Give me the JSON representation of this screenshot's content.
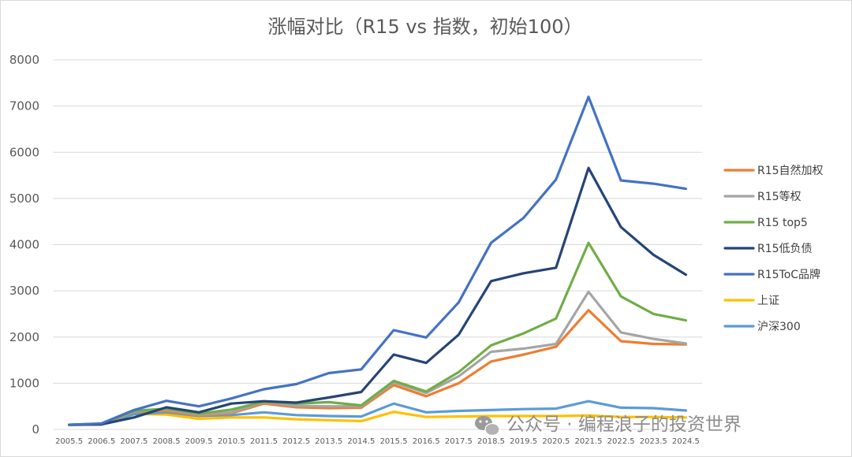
{
  "chart_data": {
    "type": "line",
    "title": "涨幅对比（R15 vs 指数，初始100）",
    "xlabel": "",
    "ylabel": "",
    "ylim": [
      0,
      8000
    ],
    "yticks": [
      "0",
      "1000",
      "2000",
      "3000",
      "4000",
      "5000",
      "6000",
      "7000",
      "8000"
    ],
    "grid": true,
    "legend_position": "right",
    "categories": [
      "2005.5",
      "2006.5",
      "2007.5",
      "2008.5",
      "2009.5",
      "2010.5",
      "2011.5",
      "2012.5",
      "2013.5",
      "2014.5",
      "2015.5",
      "2016.5",
      "2017.5",
      "2018.5",
      "2019.5",
      "2020.5",
      "2021.5",
      "2022.5",
      "2023.5",
      "2024.5"
    ],
    "series": [
      {
        "name": "R15自然加权",
        "color": "#ED7D31",
        "values": [
          100,
          110,
          380,
          400,
          300,
          350,
          560,
          480,
          460,
          470,
          960,
          720,
          1000,
          1470,
          1620,
          1790,
          2580,
          1910,
          1850,
          1840
        ]
      },
      {
        "name": "R15等权",
        "color": "#A5A5A5",
        "values": [
          100,
          115,
          390,
          430,
          320,
          370,
          590,
          510,
          500,
          500,
          1020,
          790,
          1150,
          1680,
          1750,
          1850,
          2980,
          2100,
          1960,
          1860
        ]
      },
      {
        "name": "R15 top5",
        "color": "#70AD47",
        "values": [
          100,
          120,
          400,
          450,
          340,
          430,
          600,
          560,
          590,
          520,
          1050,
          820,
          1240,
          1820,
          2080,
          2400,
          4040,
          2880,
          2500,
          2360
        ]
      },
      {
        "name": "R15低负债",
        "color": "#264478",
        "values": [
          100,
          110,
          260,
          480,
          370,
          560,
          610,
          580,
          690,
          810,
          1620,
          1440,
          2050,
          3210,
          3380,
          3500,
          5660,
          4380,
          3780,
          3350
        ]
      },
      {
        "name": "R15ToC品牌",
        "color": "#4472C4",
        "values": [
          100,
          130,
          420,
          620,
          500,
          670,
          870,
          980,
          1220,
          1300,
          2150,
          1990,
          2750,
          4040,
          4580,
          5410,
          7200,
          5390,
          5320,
          5210
        ]
      },
      {
        "name": "上证",
        "color": "#FFC000",
        "values": [
          100,
          110,
          340,
          320,
          230,
          260,
          260,
          220,
          200,
          180,
          380,
          270,
          280,
          290,
          290,
          290,
          300,
          270,
          270,
          260
        ]
      },
      {
        "name": "沪深300",
        "color": "#5B9BD5",
        "values": [
          100,
          110,
          330,
          370,
          290,
          310,
          370,
          310,
          290,
          280,
          560,
          370,
          400,
          420,
          440,
          450,
          610,
          470,
          460,
          410
        ]
      }
    ]
  },
  "watermark": "公众号 · 编程浪子的投资世界"
}
